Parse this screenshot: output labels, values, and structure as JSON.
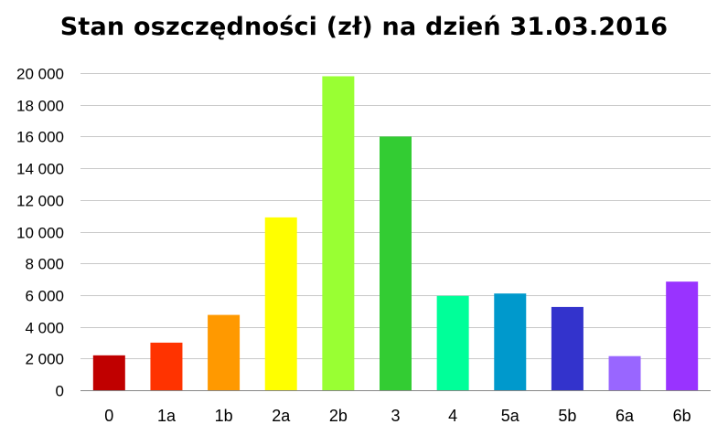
{
  "chart_data": {
    "type": "bar",
    "title": "Stan oszczędności (zł) na dzień 31.03.2016",
    "xlabel": "",
    "ylabel": "",
    "categories": [
      "0",
      "1a",
      "1b",
      "2a",
      "2b",
      "3",
      "4",
      "5a",
      "5b",
      "6a",
      "6b"
    ],
    "values": [
      2200,
      3000,
      4750,
      10900,
      19800,
      16000,
      5950,
      6100,
      5250,
      2150,
      6850
    ],
    "colors": [
      "#C00000",
      "#FF3300",
      "#FF9900",
      "#FFFF00",
      "#99FF33",
      "#33CC33",
      "#00FF99",
      "#0099CC",
      "#3333CC",
      "#9966FF",
      "#9933FF"
    ],
    "ylim": [
      0,
      20000
    ],
    "yticks": [
      0,
      2000,
      4000,
      6000,
      8000,
      10000,
      12000,
      14000,
      16000,
      18000,
      20000
    ],
    "ytick_labels": [
      "0",
      "2 000",
      "4 000",
      "6 000",
      "8 000",
      "10 000",
      "12 000",
      "14 000",
      "16 000",
      "18 000",
      "20 000"
    ],
    "grid": true,
    "legend": "none"
  }
}
